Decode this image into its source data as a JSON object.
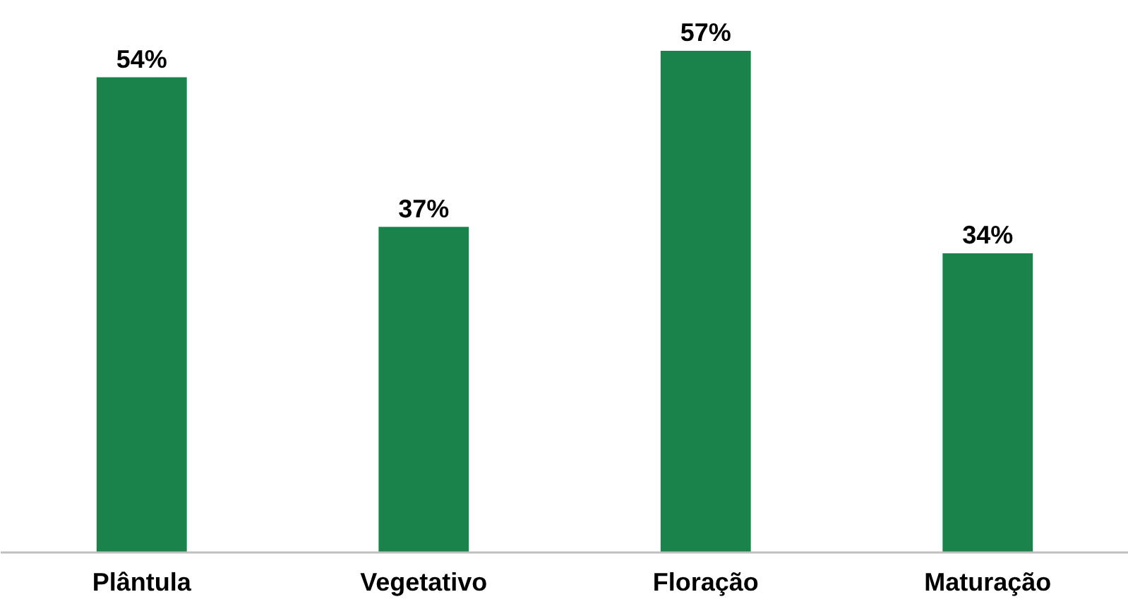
{
  "chart_data": {
    "type": "bar",
    "categories": [
      "Plântula",
      "Vegetativo",
      "Floração",
      "Maturação"
    ],
    "values": [
      54,
      37,
      57,
      34
    ],
    "value_labels": [
      "54%",
      "37%",
      "57%",
      "34%"
    ],
    "color": "#1a834c"
  }
}
